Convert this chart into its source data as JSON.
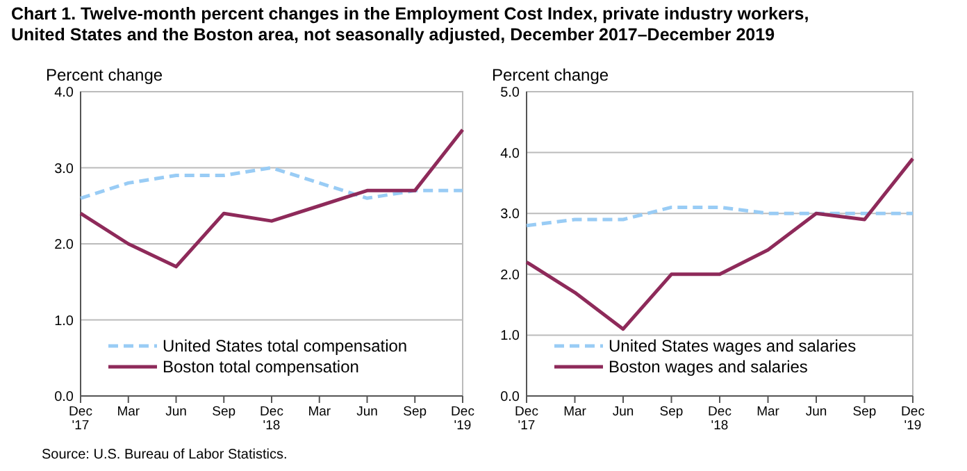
{
  "chart_data": [
    {
      "type": "line",
      "title": "Chart 1. Twelve-month percent changes in the Employment Cost Index, private industry workers,\nUnited States and the Boston area, not seasonally adjusted, December 2017–December 2019",
      "ylabel": "Percent change",
      "categories": [
        "Dec\n'17",
        "Mar",
        "Jun",
        "Sep",
        "Dec\n'18",
        "Mar",
        "Jun",
        "Sep",
        "Dec\n'19"
      ],
      "series": [
        {
          "name": "United States total compensation",
          "color": "#99ccf5",
          "line_style": "dashed",
          "values": [
            2.6,
            2.8,
            2.9,
            2.9,
            3.0,
            2.8,
            2.6,
            2.7,
            2.7
          ]
        },
        {
          "name": "Boston total compensation",
          "color": "#8e2a5a",
          "line_style": "solid",
          "values": [
            2.4,
            2.0,
            1.7,
            2.4,
            2.3,
            2.5,
            2.7,
            2.7,
            3.5
          ]
        }
      ],
      "ylim": [
        0,
        4
      ],
      "yticks": [
        {
          "value": 0,
          "label": "0.0"
        },
        {
          "value": 1,
          "label": "1.0"
        },
        {
          "value": 2,
          "label": "2.0"
        },
        {
          "value": 3,
          "label": "3.0"
        },
        {
          "value": 4,
          "label": "4.0"
        }
      ],
      "grid": "y",
      "legend": "bottom",
      "marker": "none",
      "annotations": [
        "Source: U.S. Bureau of Labor Statistics."
      ]
    },
    {
      "type": "line",
      "ylabel": "Percent change",
      "categories": [
        "Dec\n'17",
        "Mar",
        "Jun",
        "Sep",
        "Dec\n'18",
        "Mar",
        "Jun",
        "Sep",
        "Dec\n'19"
      ],
      "series": [
        {
          "name": "United States wages and salaries",
          "color": "#99ccf5",
          "line_style": "dashed",
          "values": [
            2.8,
            2.9,
            2.9,
            3.1,
            3.1,
            3.0,
            3.0,
            3.0,
            3.0
          ]
        },
        {
          "name": "Boston wages and salaries",
          "color": "#8e2a5a",
          "line_style": "solid",
          "values": [
            2.2,
            1.7,
            1.1,
            2.0,
            2.0,
            2.4,
            3.0,
            2.9,
            3.9
          ]
        }
      ],
      "ylim": [
        0,
        5
      ],
      "yticks": [
        {
          "value": 0,
          "label": "0.0"
        },
        {
          "value": 1,
          "label": "1.0"
        },
        {
          "value": 2,
          "label": "2.0"
        },
        {
          "value": 3,
          "label": "3.0"
        },
        {
          "value": 4,
          "label": "4.0"
        },
        {
          "value": 5,
          "label": "5.0"
        }
      ],
      "grid": "y",
      "legend": "bottom",
      "marker": "none"
    }
  ]
}
